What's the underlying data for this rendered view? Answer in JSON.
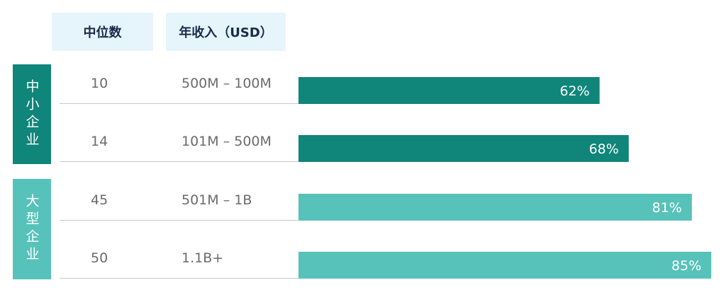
{
  "headers": {
    "median": "中位数",
    "revenue": "年收入（USD）"
  },
  "groups": [
    {
      "label": "中小企业",
      "color": "#10857a"
    },
    {
      "label": "大型企业",
      "color": "#57c2ba"
    }
  ],
  "chart_data": {
    "type": "bar",
    "orientation": "horizontal",
    "categories": [
      "500M – 100M",
      "101M – 500M",
      "501M – 1B",
      "1.1B+"
    ],
    "medians": [
      "10",
      "14",
      "45",
      "50"
    ],
    "values": [
      62,
      68,
      81,
      85
    ],
    "value_labels": [
      "62%",
      "68%",
      "81%",
      "85%"
    ],
    "bar_groups": [
      0,
      0,
      1,
      1
    ],
    "xlim": [
      0,
      100
    ]
  }
}
